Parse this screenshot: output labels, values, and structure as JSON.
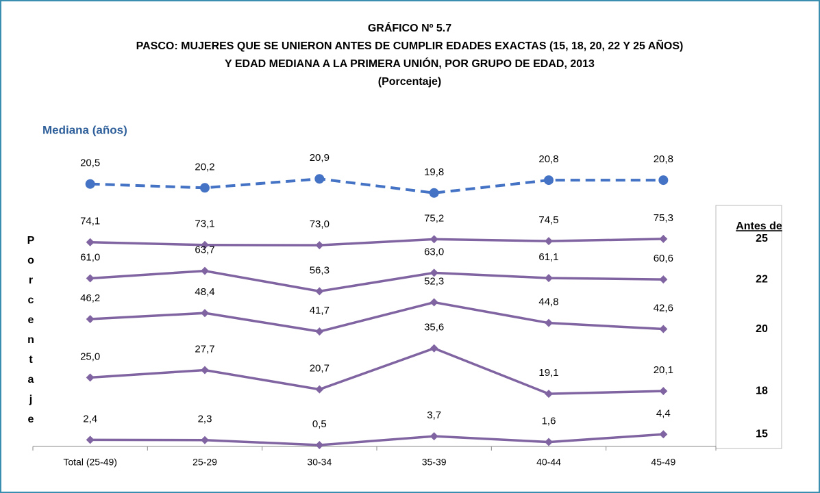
{
  "chart_data": {
    "type": "line",
    "title": "GRÁFICO Nº 5.7",
    "subtitle": [
      "PASCO: MUJERES QUE SE UNIERON ANTES DE CUMPLIR EDADES EXACTAS (15, 18, 20, 22 Y 25 AÑOS)",
      "Y EDAD MEDIANA A LA PRIMERA UNIÓN, POR GRUPO DE EDAD,  2013",
      "(Porcentaje)"
    ],
    "y_label": "Porcentaje",
    "legend_title": "Antes de",
    "categories": [
      "Total (25-49)",
      "25-29",
      "30-34",
      "35-39",
      "40-44",
      "45-49"
    ],
    "ylim": [
      0,
      80
    ],
    "y2lim": [
      0,
      21.5
    ],
    "series": [
      {
        "name": "Mediana (años)",
        "color": "#4472c4",
        "dashed": true,
        "marker": "circle",
        "axis": "y2",
        "values": [
          20.5,
          20.2,
          20.9,
          19.8,
          20.8,
          20.8
        ],
        "value_labels": [
          "20,5",
          "20,2",
          "20,9",
          "19,8",
          "20,8",
          "20,8"
        ]
      },
      {
        "name": "25",
        "color": "#8064a2",
        "marker": "diamond",
        "values": [
          74.1,
          73.1,
          73.0,
          75.2,
          74.5,
          75.3
        ],
        "value_labels": [
          "74,1",
          "73,1",
          "73,0",
          "75,2",
          "74,5",
          "75,3"
        ]
      },
      {
        "name": "22",
        "color": "#8064a2",
        "marker": "diamond",
        "values": [
          61.0,
          63.7,
          56.3,
          63.0,
          61.1,
          60.6
        ],
        "value_labels": [
          "61,0",
          "63,7",
          "56,3",
          "63,0",
          "61,1",
          "60,6"
        ]
      },
      {
        "name": "20",
        "color": "#8064a2",
        "marker": "diamond",
        "values": [
          46.2,
          48.4,
          41.7,
          52.3,
          44.8,
          42.6
        ],
        "value_labels": [
          "46,2",
          "48,4",
          "41,7",
          "52,3",
          "44,8",
          "42,6"
        ]
      },
      {
        "name": "18",
        "color": "#8064a2",
        "marker": "diamond",
        "values": [
          25.0,
          27.7,
          20.7,
          35.6,
          19.1,
          20.1
        ],
        "value_labels": [
          "25,0",
          "27,7",
          "20,7",
          "35,6",
          "19,1",
          "20,1"
        ]
      },
      {
        "name": "15",
        "color": "#8064a2",
        "marker": "diamond",
        "values": [
          2.4,
          2.3,
          0.5,
          3.7,
          1.6,
          4.4
        ],
        "value_labels": [
          "2,4",
          "2,3",
          "0,5",
          "3,7",
          "1,6",
          "4,4"
        ]
      }
    ]
  }
}
